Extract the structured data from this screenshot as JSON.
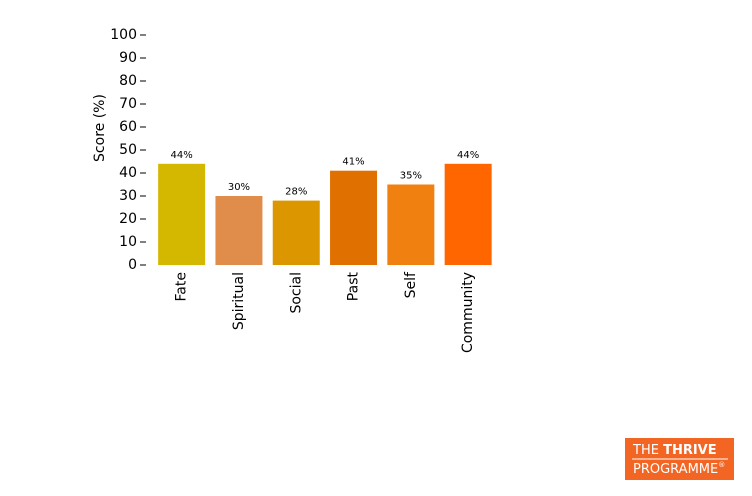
{
  "chart_data": {
    "type": "bar",
    "y_label": "Score (%)",
    "categories": [
      "Fate",
      "Spiritual",
      "Social",
      "Past",
      "Self",
      "Community"
    ],
    "values": [
      44,
      30,
      28,
      41,
      35,
      44
    ],
    "value_labels": [
      "44%",
      "30%",
      "28%",
      "41%",
      "35%",
      "44%"
    ],
    "colors": [
      "#d4b800",
      "#e08c4a",
      "#dc9600",
      "#e07000",
      "#f08010",
      "#ff6600"
    ],
    "ylim": [
      0,
      100
    ],
    "yticks": [
      0,
      10,
      20,
      30,
      40,
      50,
      60,
      70,
      80,
      90,
      100
    ]
  },
  "logo": {
    "word1": "THE",
    "word2": "THRIVE",
    "word3": "PROGRAMME",
    "mark": "®"
  }
}
